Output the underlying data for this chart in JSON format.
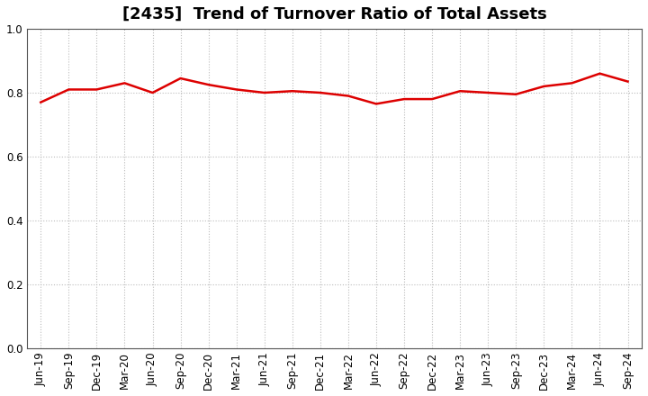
{
  "title": "[2435]  Trend of Turnover Ratio of Total Assets",
  "labels": [
    "Jun-19",
    "Sep-19",
    "Dec-19",
    "Mar-20",
    "Jun-20",
    "Sep-20",
    "Dec-20",
    "Mar-21",
    "Jun-21",
    "Sep-21",
    "Dec-21",
    "Mar-22",
    "Jun-22",
    "Sep-22",
    "Dec-22",
    "Mar-23",
    "Jun-23",
    "Sep-23",
    "Dec-23",
    "Mar-24",
    "Jun-24",
    "Sep-24"
  ],
  "values": [
    0.77,
    0.81,
    0.81,
    0.83,
    0.8,
    0.845,
    0.825,
    0.81,
    0.8,
    0.805,
    0.8,
    0.79,
    0.765,
    0.78,
    0.78,
    0.805,
    0.8,
    0.795,
    0.82,
    0.83,
    0.86,
    0.835
  ],
  "line_color": "#dd0000",
  "line_width": 1.8,
  "ylim": [
    0.0,
    1.0
  ],
  "yticks": [
    0.0,
    0.2,
    0.4,
    0.6,
    0.8,
    1.0
  ],
  "grid_color": "#bbbbbb",
  "background_color": "#ffffff",
  "title_fontsize": 13,
  "tick_fontsize": 8.5,
  "title_color": "#000000",
  "title_fontweight": "bold"
}
